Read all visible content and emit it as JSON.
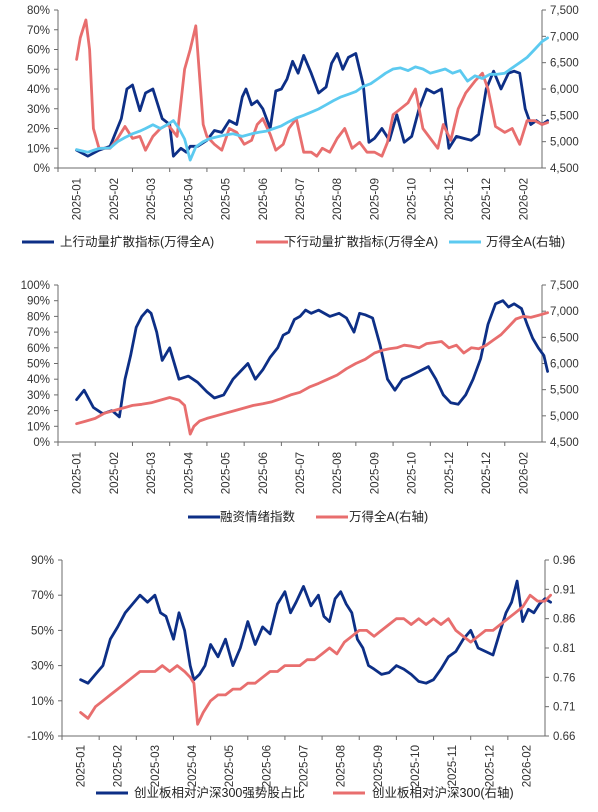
{
  "colors": {
    "dark_blue": "#0d2f86",
    "red": "#e86e6e",
    "light_blue": "#5ccaf0",
    "axis": "#6b6b6b"
  },
  "chart_data": [
    {
      "type": "line",
      "x_ticks": [
        "2025-01",
        "2025-02",
        "2025-03",
        "2025-04",
        "2025-05",
        "2025-06",
        "2025-07",
        "2025-08",
        "2025-09",
        "2025-10",
        "2025-12",
        "2025-12",
        "2026-02"
      ],
      "y_left": {
        "min": 0,
        "max": 80,
        "step": 10,
        "suffix": "%"
      },
      "y_right": {
        "min": 4500,
        "max": 7500,
        "step": 500
      },
      "grid": false,
      "legend_position": "bottom",
      "series": [
        {
          "name": "上行动量扩散指标(万得全A)",
          "axis": "left",
          "color": "#0d2f86",
          "x": [
            0,
            0.3,
            0.6,
            0.9,
            1.2,
            1.35,
            1.5,
            1.7,
            1.85,
            2.05,
            2.3,
            2.5,
            2.6,
            2.8,
            2.95,
            3.05,
            3.25,
            3.5,
            3.7,
            3.9,
            4.1,
            4.3,
            4.45,
            4.55,
            4.7,
            4.85,
            5.0,
            5.2,
            5.35,
            5.5,
            5.65,
            5.8,
            5.95,
            6.1,
            6.3,
            6.5,
            6.7,
            6.85,
            7.0,
            7.15,
            7.3,
            7.5,
            7.7,
            7.85,
            8.0,
            8.2,
            8.4,
            8.6,
            8.8,
            9.0,
            9.2,
            9.4,
            9.6,
            9.8,
            10.0,
            10.2,
            10.4,
            10.6,
            10.8,
            11.0,
            11.2,
            11.4,
            11.6,
            11.75,
            11.9,
            12.05,
            12.2,
            12.35,
            12.5,
            12.65
          ],
          "values": [
            9,
            6,
            9,
            11,
            25,
            40,
            42,
            29,
            38,
            40,
            25,
            22,
            6,
            10,
            8,
            11,
            11,
            14,
            19,
            18,
            24,
            22,
            36,
            40,
            32,
            34,
            30,
            20,
            39,
            40,
            45,
            54,
            48,
            57,
            48,
            38,
            41,
            53,
            58,
            50,
            56,
            58,
            42,
            13,
            15,
            20,
            14,
            27,
            13,
            16,
            30,
            40,
            38,
            40,
            10,
            16,
            15,
            14,
            17,
            40,
            49,
            40,
            48,
            49,
            48,
            30,
            22,
            24,
            22,
            24
          ]
        },
        {
          "name": "下行动量扩散指标(万得全A)",
          "axis": "left",
          "color": "#e86e6e",
          "x": [
            0,
            0.1,
            0.25,
            0.35,
            0.45,
            0.6,
            0.75,
            0.9,
            1.1,
            1.3,
            1.5,
            1.7,
            1.85,
            2.05,
            2.25,
            2.45,
            2.7,
            2.9,
            3.05,
            3.2,
            3.4,
            3.5,
            3.7,
            3.9,
            4.1,
            4.3,
            4.5,
            4.7,
            4.85,
            5.0,
            5.2,
            5.35,
            5.55,
            5.7,
            5.9,
            6.1,
            6.3,
            6.45,
            6.6,
            6.8,
            7.0,
            7.2,
            7.4,
            7.6,
            7.8,
            8.0,
            8.2,
            8.35,
            8.5,
            8.7,
            8.9,
            9.1,
            9.3,
            9.5,
            9.7,
            9.85,
            10.05,
            10.25,
            10.45,
            10.7,
            10.9,
            11.05,
            11.25,
            11.5,
            11.7,
            11.9,
            12.1,
            12.3,
            12.5,
            12.65
          ],
          "values": [
            55,
            66,
            75,
            60,
            20,
            10,
            10,
            10,
            15,
            21,
            15,
            16,
            9,
            16,
            20,
            22,
            16,
            50,
            60,
            72,
            22,
            16,
            12,
            9,
            20,
            18,
            12,
            14,
            22,
            25,
            17,
            9,
            12,
            20,
            25,
            8,
            8,
            6,
            10,
            8,
            15,
            20,
            10,
            13,
            8,
            8,
            6,
            13,
            27,
            30,
            33,
            40,
            20,
            15,
            10,
            22,
            14,
            30,
            38,
            44,
            48,
            40,
            21,
            18,
            20,
            12,
            24,
            24,
            22,
            23
          ]
        },
        {
          "name": "万得全A(右轴)",
          "axis": "right",
          "color": "#5ccaf0",
          "x": [
            0,
            0.3,
            0.6,
            0.9,
            1.1,
            1.3,
            1.5,
            1.7,
            1.85,
            2.05,
            2.25,
            2.45,
            2.6,
            2.75,
            2.9,
            3.05,
            3.2,
            3.4,
            3.55,
            3.7,
            3.95,
            4.2,
            4.45,
            4.7,
            4.9,
            5.1,
            5.3,
            5.5,
            5.7,
            5.9,
            6.1,
            6.3,
            6.5,
            6.7,
            6.9,
            7.1,
            7.3,
            7.5,
            7.7,
            7.9,
            8.1,
            8.3,
            8.5,
            8.7,
            8.9,
            9.1,
            9.3,
            9.5,
            9.7,
            9.9,
            10.1,
            10.3,
            10.5,
            10.7,
            10.9,
            11.1,
            11.3,
            11.5,
            11.7,
            11.9,
            12.1,
            12.3,
            12.5,
            12.65
          ],
          "values": [
            4850,
            4800,
            4870,
            4880,
            5000,
            5080,
            5150,
            5200,
            5250,
            5320,
            5250,
            5330,
            5400,
            5250,
            5050,
            4650,
            4900,
            5000,
            5050,
            5080,
            5120,
            5150,
            5100,
            5150,
            5180,
            5200,
            5250,
            5300,
            5380,
            5450,
            5500,
            5560,
            5620,
            5700,
            5780,
            5850,
            5900,
            5950,
            6050,
            6100,
            6200,
            6300,
            6380,
            6400,
            6350,
            6420,
            6380,
            6300,
            6340,
            6380,
            6300,
            6350,
            6150,
            6250,
            6200,
            6280,
            6280,
            6300,
            6400,
            6500,
            6600,
            6750,
            6900,
            6970
          ]
        }
      ]
    },
    {
      "type": "line",
      "x_ticks": [
        "2025-01",
        "2025-02",
        "2025-03",
        "2025-04",
        "2025-05",
        "2025-06",
        "2025-07",
        "2025-08",
        "2025-09",
        "2025-10",
        "2025-12",
        "2025-12",
        "2026-02"
      ],
      "y_left": {
        "min": 0,
        "max": 100,
        "step": 10,
        "suffix": "%"
      },
      "y_right": {
        "min": 4500,
        "max": 7500,
        "step": 500
      },
      "grid": false,
      "legend_position": "bottom",
      "series": [
        {
          "name": "融资情绪指数",
          "axis": "left",
          "color": "#0d2f86",
          "x": [
            0,
            0.2,
            0.45,
            0.7,
            0.95,
            1.15,
            1.3,
            1.45,
            1.6,
            1.75,
            1.9,
            2.0,
            2.15,
            2.3,
            2.5,
            2.75,
            3.0,
            3.25,
            3.5,
            3.7,
            3.95,
            4.2,
            4.4,
            4.6,
            4.8,
            5.0,
            5.2,
            5.4,
            5.55,
            5.7,
            5.85,
            6.0,
            6.15,
            6.3,
            6.5,
            6.8,
            7.05,
            7.25,
            7.45,
            7.6,
            7.75,
            7.95,
            8.15,
            8.35,
            8.55,
            8.75,
            8.95,
            9.2,
            9.45,
            9.65,
            9.85,
            10.05,
            10.25,
            10.45,
            10.65,
            10.85,
            11.05,
            11.25,
            11.45,
            11.6,
            11.75,
            11.95,
            12.1,
            12.25,
            12.4,
            12.55,
            12.65
          ],
          "values": [
            27,
            33,
            22,
            18,
            20,
            16,
            40,
            55,
            73,
            80,
            84,
            82,
            70,
            52,
            60,
            40,
            42,
            38,
            32,
            28,
            30,
            40,
            45,
            50,
            40,
            46,
            54,
            60,
            68,
            70,
            78,
            80,
            84,
            82,
            84,
            80,
            82,
            79,
            70,
            82,
            81,
            79,
            62,
            40,
            33,
            40,
            42,
            45,
            48,
            40,
            30,
            25,
            24,
            30,
            40,
            53,
            75,
            88,
            90,
            86,
            88,
            85,
            75,
            66,
            60,
            55,
            45
          ]
        },
        {
          "name": "万得全A(右轴)",
          "axis": "right",
          "color": "#e86e6e",
          "x": [
            0,
            0.25,
            0.5,
            0.75,
            1.0,
            1.25,
            1.5,
            1.75,
            2.0,
            2.25,
            2.5,
            2.75,
            2.9,
            3.05,
            3.15,
            3.3,
            3.5,
            3.75,
            4.0,
            4.25,
            4.5,
            4.75,
            5.0,
            5.25,
            5.5,
            5.75,
            6.0,
            6.25,
            6.5,
            6.75,
            7.0,
            7.25,
            7.5,
            7.75,
            8.0,
            8.2,
            8.4,
            8.6,
            8.8,
            9.0,
            9.2,
            9.4,
            9.6,
            9.8,
            10.0,
            10.2,
            10.4,
            10.6,
            10.8,
            11.0,
            11.2,
            11.4,
            11.6,
            11.8,
            12.0,
            12.2,
            12.4,
            12.65
          ],
          "values": [
            4850,
            4900,
            4950,
            5050,
            5100,
            5150,
            5200,
            5220,
            5250,
            5300,
            5350,
            5300,
            5200,
            4650,
            4800,
            4900,
            4950,
            5000,
            5050,
            5100,
            5150,
            5200,
            5230,
            5270,
            5330,
            5400,
            5450,
            5550,
            5620,
            5700,
            5780,
            5900,
            6000,
            6080,
            6200,
            6250,
            6280,
            6300,
            6350,
            6330,
            6300,
            6380,
            6400,
            6420,
            6300,
            6350,
            6200,
            6300,
            6280,
            6350,
            6450,
            6550,
            6700,
            6850,
            6900,
            6880,
            6920,
            6970
          ]
        }
      ]
    },
    {
      "type": "line",
      "x_ticks": [
        "2025-01",
        "2025-02",
        "2025-03",
        "2025-04",
        "2025-05",
        "2025-06",
        "2025-07",
        "2025-08",
        "2025-09",
        "2025-10",
        "2025-11",
        "2025-12",
        "2026-02"
      ],
      "y_left": {
        "min": -10,
        "max": 90,
        "step": 20,
        "suffix": "%"
      },
      "y_right": {
        "min": 0.66,
        "max": 0.96,
        "step": 0.05
      },
      "grid": false,
      "legend_position": "bottom",
      "series": [
        {
          "name": "创业板相对沪深300强势股占比",
          "axis": "left",
          "color": "#0d2f86",
          "x": [
            0,
            0.2,
            0.4,
            0.6,
            0.8,
            1.0,
            1.2,
            1.4,
            1.6,
            1.8,
            2.0,
            2.15,
            2.3,
            2.5,
            2.65,
            2.8,
            2.95,
            3.05,
            3.2,
            3.35,
            3.5,
            3.7,
            3.9,
            4.1,
            4.3,
            4.5,
            4.7,
            4.9,
            5.1,
            5.3,
            5.5,
            5.65,
            5.8,
            6.0,
            6.2,
            6.4,
            6.55,
            6.7,
            6.85,
            7.0,
            7.15,
            7.3,
            7.45,
            7.6,
            7.75,
            7.9,
            8.1,
            8.3,
            8.5,
            8.7,
            8.9,
            9.1,
            9.3,
            9.5,
            9.7,
            9.9,
            10.1,
            10.3,
            10.5,
            10.7,
            10.9,
            11.1,
            11.3,
            11.45,
            11.6,
            11.75,
            11.9,
            12.05,
            12.2,
            12.35,
            12.5,
            12.65
          ],
          "values": [
            22,
            20,
            25,
            30,
            45,
            52,
            60,
            65,
            70,
            66,
            70,
            60,
            58,
            45,
            60,
            50,
            30,
            22,
            25,
            30,
            42,
            35,
            45,
            30,
            40,
            55,
            42,
            52,
            48,
            65,
            72,
            60,
            66,
            75,
            64,
            70,
            58,
            55,
            68,
            72,
            65,
            60,
            45,
            40,
            30,
            28,
            25,
            26,
            30,
            28,
            25,
            21,
            20,
            22,
            28,
            35,
            38,
            45,
            50,
            40,
            38,
            36,
            50,
            60,
            66,
            78,
            55,
            62,
            60,
            65,
            68,
            66
          ]
        },
        {
          "name": "创业板相对沪深300(右轴)",
          "axis": "right",
          "color": "#e86e6e",
          "x": [
            0,
            0.2,
            0.4,
            0.6,
            0.8,
            1.0,
            1.2,
            1.4,
            1.6,
            1.8,
            2.0,
            2.2,
            2.4,
            2.6,
            2.8,
            2.95,
            3.05,
            3.15,
            3.3,
            3.5,
            3.7,
            3.9,
            4.1,
            4.3,
            4.5,
            4.7,
            4.9,
            5.1,
            5.3,
            5.5,
            5.7,
            5.9,
            6.1,
            6.3,
            6.5,
            6.7,
            6.9,
            7.1,
            7.3,
            7.5,
            7.7,
            7.9,
            8.1,
            8.3,
            8.5,
            8.7,
            8.9,
            9.1,
            9.3,
            9.5,
            9.7,
            9.9,
            10.1,
            10.3,
            10.5,
            10.7,
            10.9,
            11.1,
            11.3,
            11.5,
            11.7,
            11.9,
            12.1,
            12.3,
            12.5,
            12.65
          ],
          "values": [
            0.7,
            0.69,
            0.71,
            0.72,
            0.73,
            0.74,
            0.75,
            0.76,
            0.77,
            0.77,
            0.77,
            0.78,
            0.77,
            0.78,
            0.77,
            0.76,
            0.75,
            0.68,
            0.7,
            0.72,
            0.73,
            0.73,
            0.74,
            0.74,
            0.75,
            0.75,
            0.76,
            0.77,
            0.77,
            0.78,
            0.78,
            0.78,
            0.79,
            0.79,
            0.8,
            0.81,
            0.8,
            0.82,
            0.83,
            0.84,
            0.84,
            0.83,
            0.84,
            0.85,
            0.86,
            0.86,
            0.85,
            0.86,
            0.85,
            0.86,
            0.85,
            0.86,
            0.84,
            0.83,
            0.82,
            0.83,
            0.84,
            0.84,
            0.85,
            0.86,
            0.87,
            0.88,
            0.9,
            0.89,
            0.89,
            0.9
          ]
        }
      ]
    }
  ]
}
